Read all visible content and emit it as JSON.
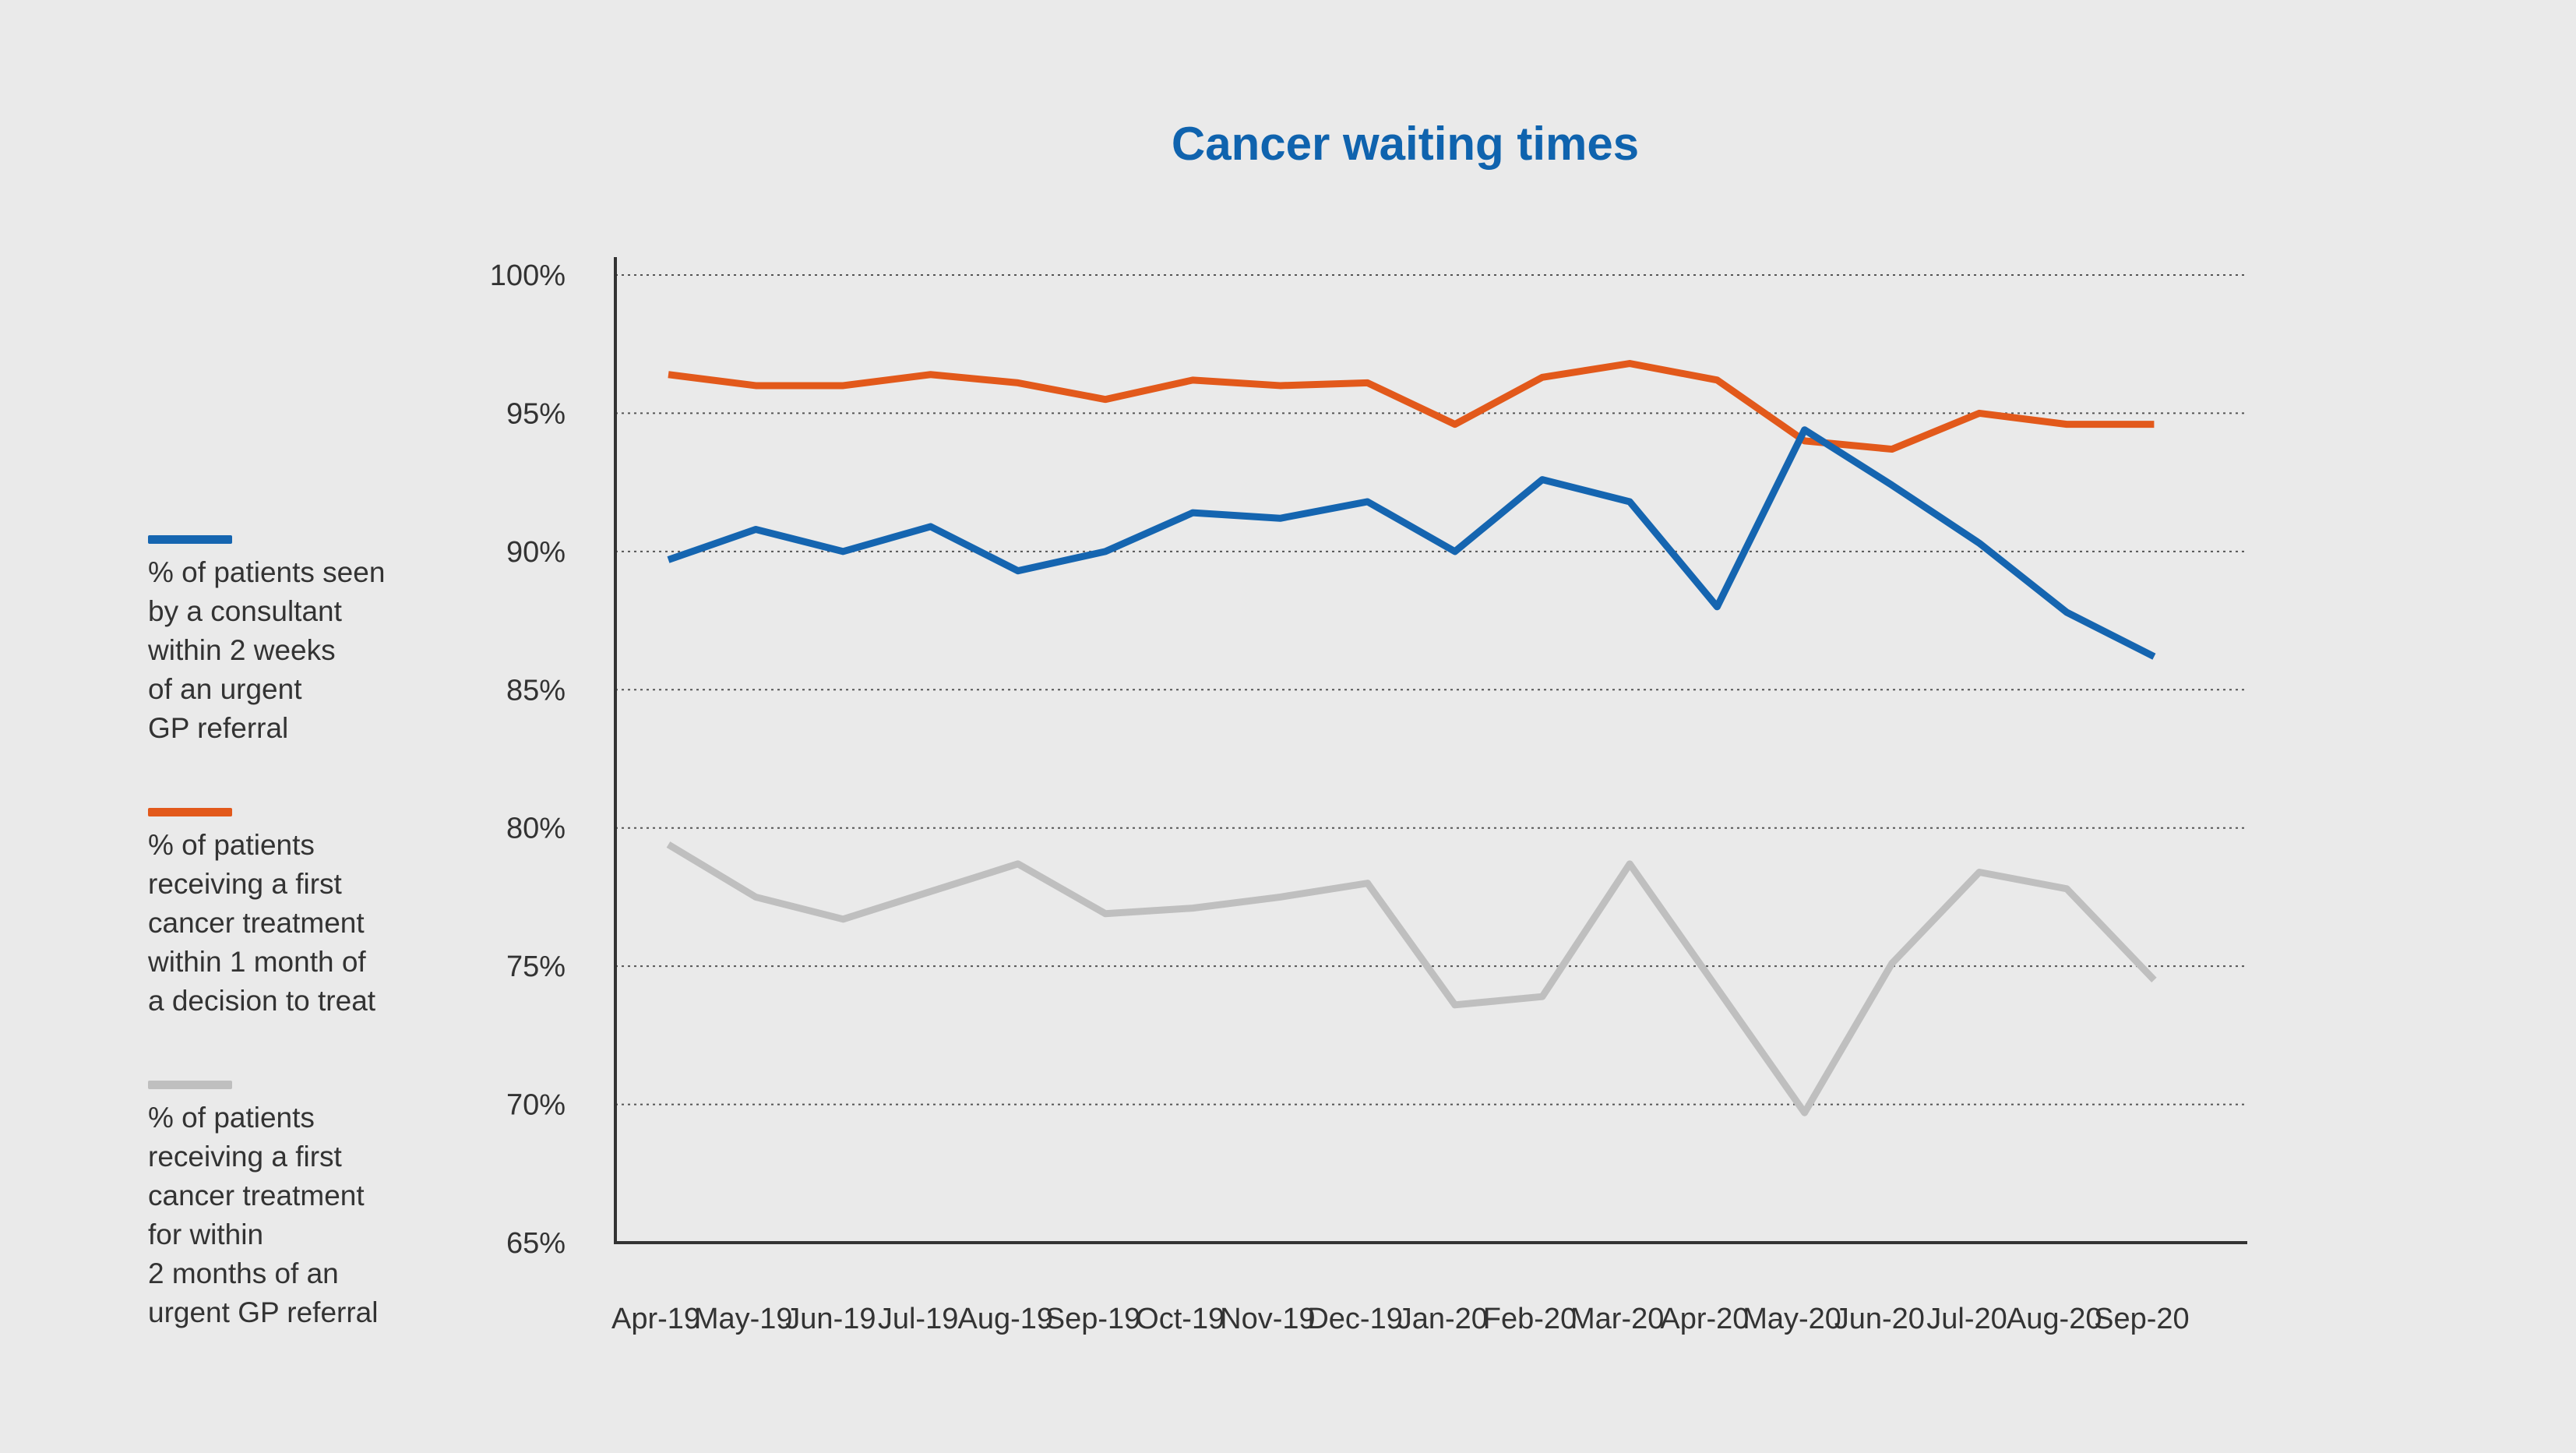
{
  "chart_data": {
    "type": "line",
    "title": "Cancer waiting times",
    "categories": [
      "Apr-19",
      "May-19",
      "Jun-19",
      "Jul-19",
      "Aug-19",
      "Sep-19",
      "Oct-19",
      "Nov-19",
      "Dec-19",
      "Jan-20",
      "Feb-20",
      "Mar-20",
      "Apr-20",
      "May-20",
      "Jun-20",
      "Jul-20",
      "Aug-20",
      "Sep-20"
    ],
    "yticks": [
      "100%",
      "95%",
      "90%",
      "85%",
      "80%",
      "75%",
      "70%",
      "65%"
    ],
    "ylim": [
      65,
      100
    ],
    "grid": "horizontal dotted",
    "legend_position": "left",
    "series": [
      {
        "name": "% of patients seen\nby a consultant\nwithin 2 weeks\nof an urgent\nGP referral",
        "color": "#1565b0",
        "values": [
          89.7,
          90.8,
          90.0,
          90.9,
          89.3,
          90.0,
          91.4,
          91.2,
          91.8,
          90.0,
          92.6,
          91.8,
          88.0,
          94.4,
          92.4,
          90.3,
          87.8,
          86.2
        ]
      },
      {
        "name": "% of patients\nreceiving a first\ncancer treatment\nwithin 1 month of\na decision to treat",
        "color": "#e2591b",
        "values": [
          96.4,
          96.0,
          96.0,
          96.4,
          96.1,
          95.5,
          96.2,
          96.0,
          96.1,
          94.6,
          96.3,
          96.8,
          96.2,
          94.0,
          93.7,
          95.0,
          94.6,
          94.6
        ]
      },
      {
        "name": "% of patients\nreceiving a first\ncancer treatment\nfor within\n2 months of an\nurgent GP referral",
        "color": "#bfbfbf",
        "values": [
          79.4,
          77.5,
          76.7,
          77.7,
          78.7,
          76.9,
          77.1,
          77.5,
          78.0,
          73.6,
          73.9,
          78.7,
          74.2,
          69.7,
          75.1,
          78.4,
          77.8,
          74.5
        ]
      }
    ]
  }
}
